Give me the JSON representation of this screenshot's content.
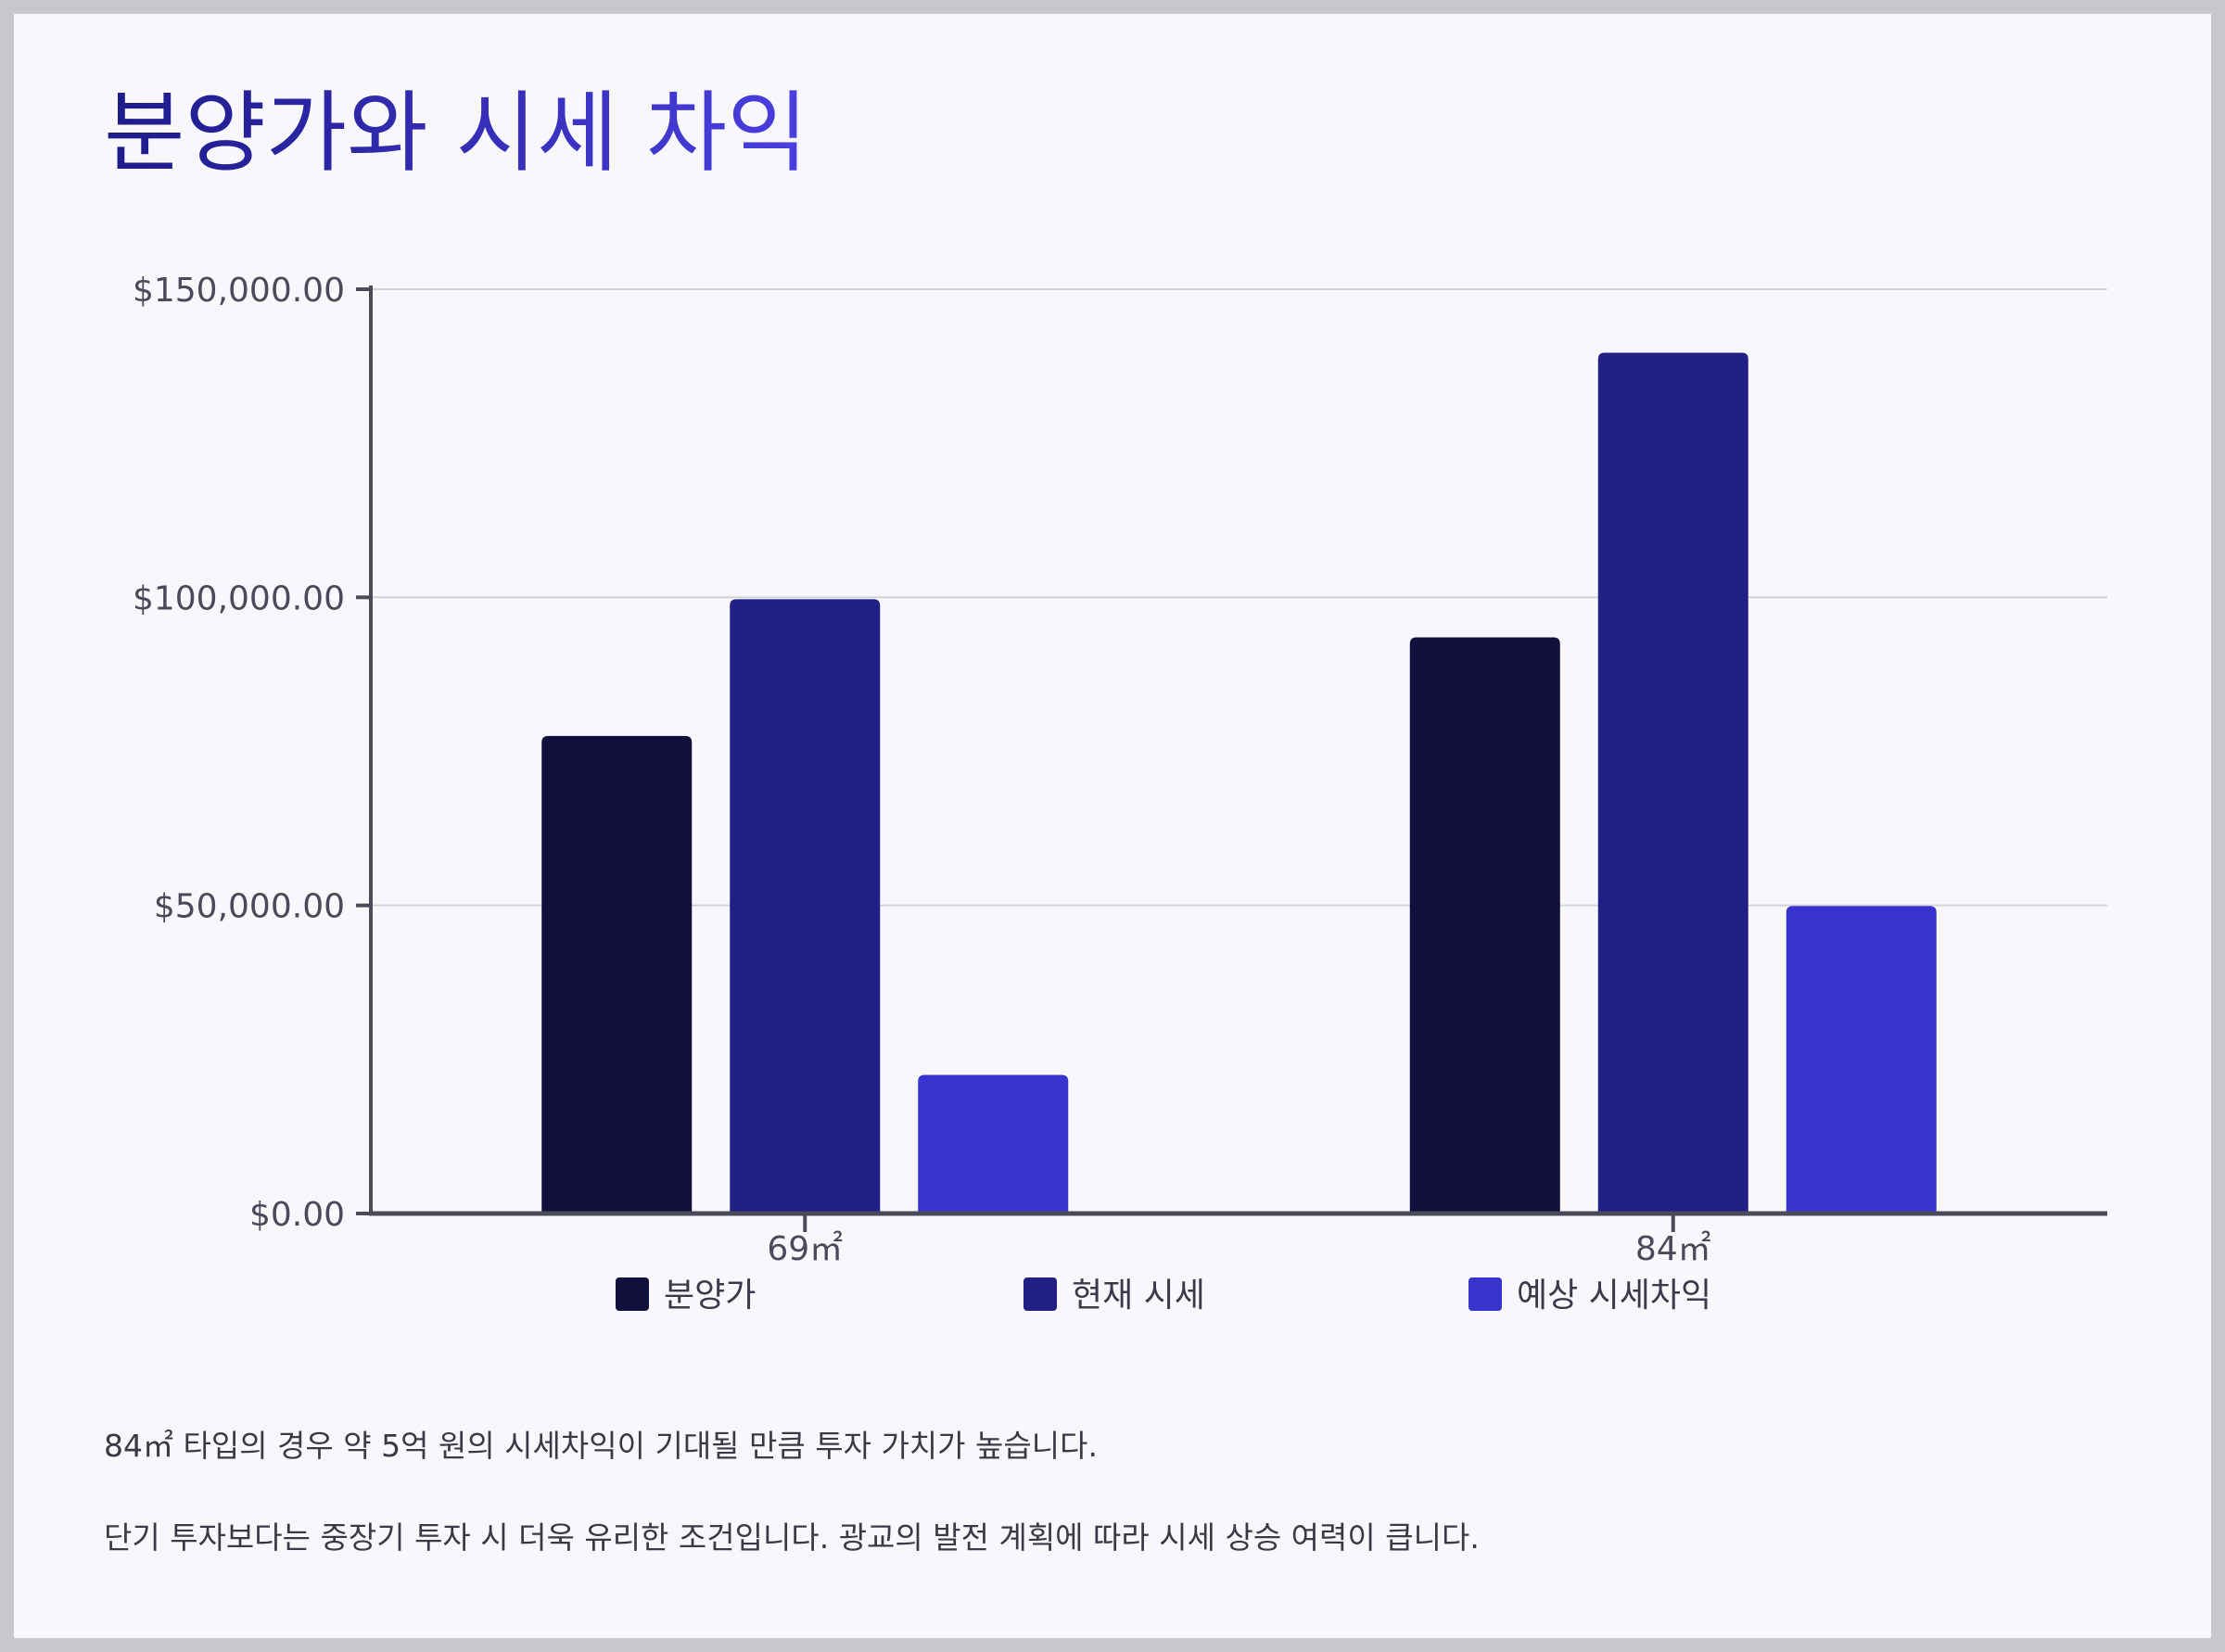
{
  "title": "분양가와 시세 차익",
  "chart_data": {
    "type": "bar",
    "categories": [
      "69㎡",
      "84㎡"
    ],
    "series": [
      {
        "name": "분양가",
        "values": [
          77500,
          93500
        ],
        "color": "#11103d"
      },
      {
        "name": "현재 시세",
        "values": [
          99700,
          139700
        ],
        "color": "#221f85"
      },
      {
        "name": "예상 시세차익",
        "values": [
          22500,
          49900
        ],
        "color": "#3833cf"
      }
    ],
    "ylim": [
      0,
      150000
    ],
    "yticks": [
      0,
      50000,
      100000,
      150000
    ],
    "ytick_labels": [
      "$0.00",
      "$50,000.00",
      "$100,000.00",
      "$150,000.00"
    ],
    "grid": true,
    "legend_position": "bottom",
    "xlabel": "",
    "ylabel": ""
  },
  "descriptions": [
    "84㎡ 타입의 경우 약 5억 원의 시세차익이 기대될 만큼 투자 가치가 높습니다.",
    "단기 투자보다는 중장기 투자 시 더욱 유리한 조건입니다. 광교의 발전 계획에 따라 시세 상승 여력이 큽니다."
  ]
}
